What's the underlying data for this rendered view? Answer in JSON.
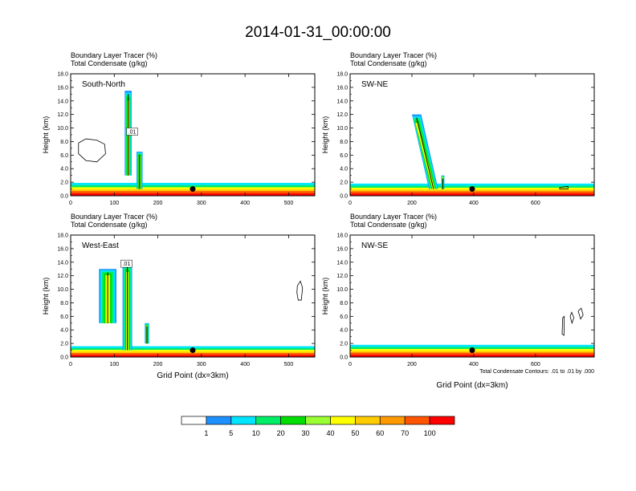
{
  "title": "2014-01-31_00:00:00",
  "panel_field_1": "Boundary Layer Tracer   (%)",
  "panel_field_2": "Total Condensate   (g/kg)",
  "ylabel": "Height (km)",
  "xlabel": "Grid Point (dx=3km)",
  "contour_note": "Total Condensate Contours: .01 to .01 by .000",
  "colorbar": {
    "levels": [
      "1",
      "5",
      "10",
      "20",
      "30",
      "40",
      "50",
      "60",
      "70",
      "100"
    ],
    "colors": [
      "#ffffff",
      "#1e90ff",
      "#00e5ff",
      "#00ee66",
      "#00dd00",
      "#99ff33",
      "#ffff00",
      "#ffcc00",
      "#ff9900",
      "#ff5500",
      "#ff0000"
    ]
  },
  "chart_data": [
    {
      "type": "heatmap",
      "panel": "South-North",
      "xlim": [
        0,
        560
      ],
      "ylim": [
        0,
        18
      ],
      "xticks": [
        0,
        100,
        200,
        300,
        400,
        500
      ],
      "yticks": [
        "0.0",
        "2.0",
        "4.0",
        "6.0",
        "8.0",
        "10.0",
        "12.0",
        "14.0",
        "16.0",
        "18.0"
      ],
      "marker_x": 280,
      "label_01_x": 141,
      "plumes": [
        {
          "x": 132,
          "ybottom": 3,
          "ytop": 15.5,
          "width": 16
        },
        {
          "x": 158,
          "ybottom": 1,
          "ytop": 6.5,
          "width": 14
        }
      ],
      "contours": [
        {
          "xy": [
            [
              18,
              7.8
            ],
            [
              35,
              8.4
            ],
            [
              60,
              8.2
            ],
            [
              78,
              7.6
            ],
            [
              80,
              6.2
            ],
            [
              60,
              5
            ],
            [
              35,
              5.2
            ],
            [
              18,
              6.2
            ],
            [
              18,
              7.8
            ]
          ]
        }
      ],
      "bl_top": 1.9
    },
    {
      "type": "heatmap",
      "panel": "SW-NE",
      "xlim": [
        0,
        790
      ],
      "ylim": [
        0,
        18
      ],
      "xticks": [
        0,
        200,
        400,
        600
      ],
      "yticks": [
        "0.0",
        "2.0",
        "4.0",
        "6.0",
        "8.0",
        "10.0",
        "12.0",
        "14.0",
        "16.0",
        "18.0"
      ],
      "marker_x": 395,
      "plumes": [
        {
          "x": 270,
          "ybottom": 1,
          "ytop": 12,
          "width": 30,
          "slant": -55
        },
        {
          "x": 300,
          "ybottom": 1,
          "ytop": 3,
          "width": 10
        }
      ],
      "contours": [
        {
          "xy": [
            [
              678,
              1.2
            ],
            [
              705,
              1.4
            ],
            [
              705,
              1
            ],
            [
              678,
              1
            ],
            [
              678,
              1.2
            ]
          ]
        }
      ],
      "bl_top": 1.8
    },
    {
      "type": "heatmap",
      "panel": "West-East",
      "xlim": [
        0,
        560
      ],
      "ylim": [
        0,
        18
      ],
      "xticks": [
        0,
        100,
        200,
        300,
        400,
        500
      ],
      "yticks": [
        "0.0",
        "2.0",
        "4.0",
        "6.0",
        "8.0",
        "10.0",
        "12.0",
        "14.0",
        "16.0",
        "18.0"
      ],
      "marker_x": 280,
      "label_01_x": 128,
      "plumes": [
        {
          "x": 85,
          "ybottom": 5,
          "ytop": 13,
          "width": 40
        },
        {
          "x": 130,
          "ybottom": 1,
          "ytop": 14,
          "width": 22
        },
        {
          "x": 175,
          "ybottom": 2,
          "ytop": 5,
          "width": 10
        }
      ],
      "contours": [
        {
          "xy": [
            [
              520,
              10.5
            ],
            [
              527,
              11.2
            ],
            [
              532,
              10.2
            ],
            [
              529,
              8.4
            ],
            [
              522,
              8.4
            ],
            [
              519,
              9.5
            ],
            [
              520,
              10.5
            ]
          ]
        }
      ],
      "bl_top": 1.6
    },
    {
      "type": "heatmap",
      "panel": "NW-SE",
      "xlim": [
        0,
        790
      ],
      "ylim": [
        0,
        18
      ],
      "xticks": [
        0,
        200,
        400,
        600
      ],
      "yticks": [
        "0.0",
        "2.0",
        "4.0",
        "6.0",
        "8.0",
        "10.0",
        "12.0",
        "14.0",
        "16.0",
        "18.0"
      ],
      "marker_x": 395,
      "plumes": [],
      "contours": [
        {
          "xy": [
            [
              688,
              5.8
            ],
            [
              693,
              6.0
            ],
            [
              692,
              3.2
            ],
            [
              686,
              3.4
            ],
            [
              688,
              5.8
            ]
          ]
        },
        {
          "xy": [
            [
              712,
              6.0
            ],
            [
              717,
              6.6
            ],
            [
              724,
              5.8
            ],
            [
              718,
              5.0
            ],
            [
              712,
              6.0
            ]
          ]
        },
        {
          "xy": [
            [
              738,
              6.8
            ],
            [
              748,
              7.2
            ],
            [
              754,
              6.2
            ],
            [
              746,
              5.6
            ],
            [
              738,
              6.8
            ]
          ]
        }
      ],
      "bl_top": 1.8
    }
  ]
}
